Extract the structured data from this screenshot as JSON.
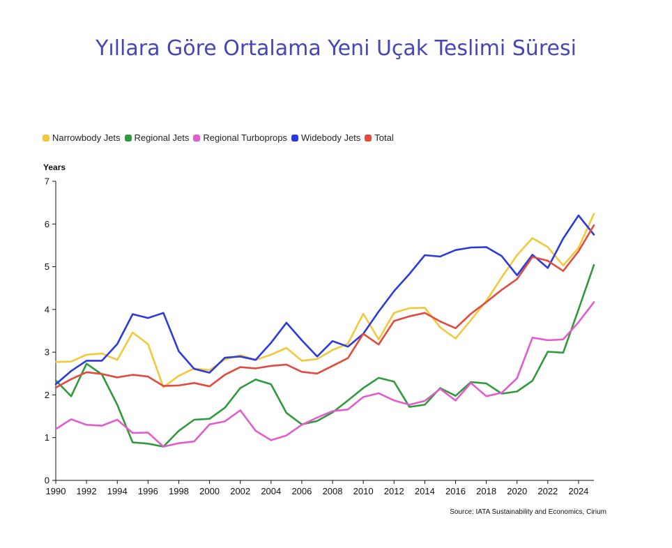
{
  "title": "Yıllara Göre Ortalama Yeni Uçak Teslimi Süresi",
  "source": "Source: IATA Sustainability and Economics, Cirium",
  "chart_data": {
    "type": "line",
    "ylabel": "Years",
    "xlim": [
      1990,
      2025
    ],
    "ylim": [
      0,
      7
    ],
    "xticks": [
      "1990",
      "1992",
      "1994",
      "1996",
      "1998",
      "2000",
      "2002",
      "2004",
      "2006",
      "2008",
      "2010",
      "2012",
      "2014",
      "2016",
      "2018",
      "2020",
      "2022",
      "2024"
    ],
    "yticks": [
      "0",
      "1",
      "2",
      "3",
      "4",
      "5",
      "6",
      "7"
    ],
    "grid": false,
    "legend_position": "top-left",
    "x": [
      1990,
      1991,
      1992,
      1993,
      1994,
      1995,
      1996,
      1997,
      1998,
      1999,
      2000,
      2001,
      2002,
      2003,
      2004,
      2005,
      2006,
      2007,
      2008,
      2009,
      2010,
      2011,
      2012,
      2013,
      2014,
      2015,
      2016,
      2017,
      2018,
      2019,
      2020,
      2021,
      2022,
      2023,
      2024,
      2025
    ],
    "series": [
      {
        "name": "Narrowbody Jets",
        "color": "#f2c83a",
        "values": [
          2.77,
          2.78,
          2.94,
          2.97,
          2.82,
          3.46,
          3.19,
          2.18,
          2.45,
          2.62,
          2.58,
          2.83,
          2.93,
          2.82,
          2.94,
          3.1,
          2.8,
          2.84,
          3.05,
          3.2,
          3.9,
          3.3,
          3.92,
          4.03,
          4.04,
          3.58,
          3.32,
          3.75,
          4.2,
          4.75,
          5.27,
          5.67,
          5.46,
          5.03,
          5.44,
          6.24
        ]
      },
      {
        "name": "Regional Jets",
        "color": "#2e9a3a",
        "values": [
          2.34,
          1.97,
          2.73,
          2.48,
          1.77,
          0.89,
          0.86,
          0.79,
          1.16,
          1.42,
          1.44,
          1.7,
          2.16,
          2.36,
          2.25,
          1.58,
          1.31,
          1.39,
          1.59,
          1.87,
          2.16,
          2.4,
          2.31,
          1.72,
          1.77,
          2.16,
          1.98,
          2.3,
          2.27,
          2.03,
          2.08,
          2.33,
          3.01,
          2.99,
          4.0,
          5.04
        ]
      },
      {
        "name": "Regional Turboprops",
        "color": "#e35ccf",
        "values": [
          1.2,
          1.43,
          1.3,
          1.28,
          1.42,
          1.11,
          1.12,
          0.79,
          0.87,
          0.91,
          1.31,
          1.38,
          1.64,
          1.16,
          0.94,
          1.05,
          1.3,
          1.47,
          1.62,
          1.66,
          1.95,
          2.04,
          1.87,
          1.77,
          1.86,
          2.14,
          1.87,
          2.28,
          1.97,
          2.05,
          2.39,
          3.34,
          3.28,
          3.3,
          3.7,
          4.17
        ]
      },
      {
        "name": "Widebody Jets",
        "color": "#2a3ae0",
        "values": [
          2.25,
          2.56,
          2.8,
          2.8,
          3.19,
          3.89,
          3.8,
          3.92,
          3.02,
          2.61,
          2.52,
          2.87,
          2.9,
          2.82,
          3.22,
          3.69,
          3.28,
          2.9,
          3.26,
          3.13,
          3.43,
          3.95,
          4.43,
          4.83,
          5.27,
          5.24,
          5.39,
          5.45,
          5.46,
          5.25,
          4.8,
          5.28,
          4.97,
          5.66,
          6.2,
          5.75
        ]
      },
      {
        "name": "Total",
        "color": "#e24a3c",
        "values": [
          2.17,
          2.37,
          2.53,
          2.49,
          2.41,
          2.47,
          2.43,
          2.21,
          2.22,
          2.28,
          2.2,
          2.47,
          2.65,
          2.62,
          2.68,
          2.71,
          2.54,
          2.5,
          2.68,
          2.86,
          3.43,
          3.18,
          3.73,
          3.84,
          3.92,
          3.72,
          3.56,
          3.9,
          4.17,
          4.46,
          4.71,
          5.23,
          5.14,
          4.9,
          5.36,
          5.97
        ]
      }
    ]
  }
}
